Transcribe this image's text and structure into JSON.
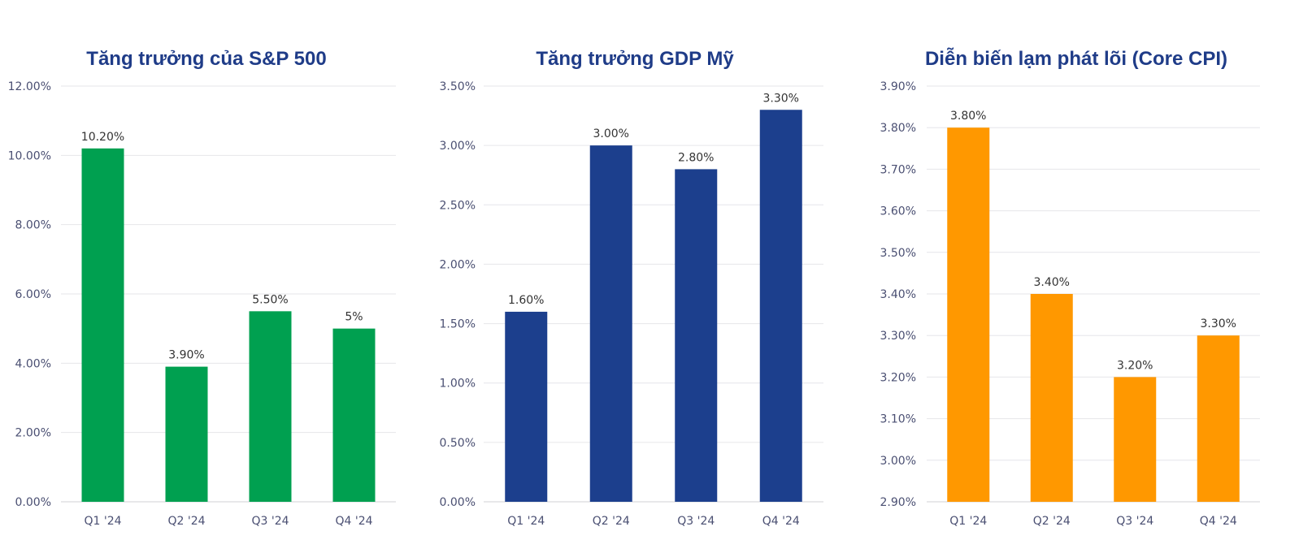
{
  "chart_data": [
    {
      "type": "bar",
      "title": "Tăng trưởng của S&P 500",
      "categories": [
        "Q1 '24",
        "Q2 '24",
        "Q3 '24",
        "Q4 '24"
      ],
      "values": [
        10.2,
        3.9,
        5.5,
        5.0
      ],
      "value_labels": [
        "10.20%",
        "3.90%",
        "5.50%",
        "5%"
      ],
      "yticks": [
        "0.00%",
        "2.00%",
        "4.00%",
        "6.00%",
        "8.00%",
        "10.00%",
        "12.00%"
      ],
      "ylim": [
        0,
        12
      ],
      "xlabel": "",
      "ylabel": "",
      "grid": true,
      "bar_color": "#00a050",
      "title_color": "#1f3c88"
    },
    {
      "type": "bar",
      "title": "Tăng trưởng GDP Mỹ",
      "categories": [
        "Q1 '24",
        "Q2 '24",
        "Q3 '24",
        "Q4 '24"
      ],
      "values": [
        1.6,
        3.0,
        2.8,
        3.3
      ],
      "value_labels": [
        "1.60%",
        "3.00%",
        "2.80%",
        "3.30%"
      ],
      "yticks": [
        "0.00%",
        "0.50%",
        "1.00%",
        "1.50%",
        "2.00%",
        "2.50%",
        "3.00%",
        "3.50%"
      ],
      "ylim": [
        0,
        3.5
      ],
      "xlabel": "",
      "ylabel": "",
      "grid": true,
      "bar_color": "#1c3f8d",
      "title_color": "#1f3c88"
    },
    {
      "type": "bar",
      "title": "Diễn biến lạm phát lõi (Core CPI)",
      "categories": [
        "Q1 '24",
        "Q2 '24",
        "Q3 '24",
        "Q4 '24"
      ],
      "values": [
        3.8,
        3.4,
        3.2,
        3.3
      ],
      "value_labels": [
        "3.80%",
        "3.40%",
        "3.20%",
        "3.30%"
      ],
      "yticks": [
        "2.90%",
        "3.00%",
        "3.10%",
        "3.20%",
        "3.30%",
        "3.40%",
        "3.50%",
        "3.60%",
        "3.70%",
        "3.80%",
        "3.90%"
      ],
      "ylim": [
        2.9,
        3.9
      ],
      "xlabel": "",
      "ylabel": "",
      "grid": true,
      "bar_color": "#ff9800",
      "title_color": "#1f3c88"
    }
  ]
}
